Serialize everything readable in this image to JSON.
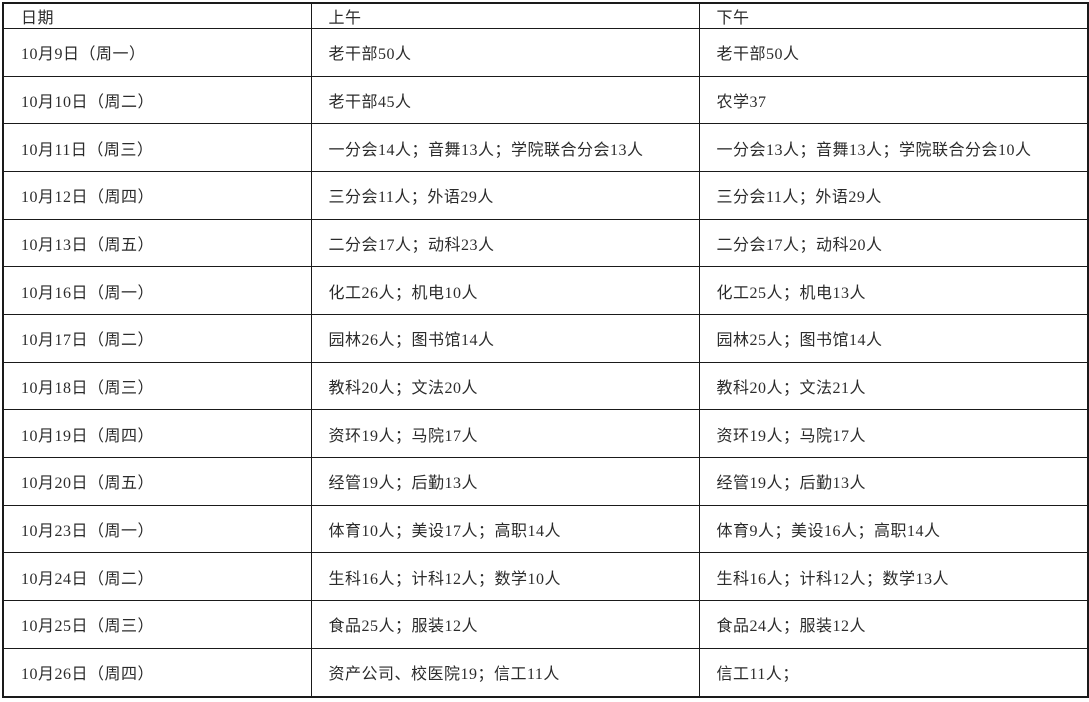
{
  "table": {
    "headers": [
      "日期",
      "上午",
      "下午"
    ],
    "rows": [
      {
        "date": "10月9日（周一）",
        "morning": "老干部50人",
        "afternoon": "老干部50人"
      },
      {
        "date": "10月10日（周二）",
        "morning": "老干部45人",
        "afternoon": "农学37"
      },
      {
        "date": "10月11日（周三）",
        "morning": "一分会14人；音舞13人；学院联合分会13人",
        "afternoon": "一分会13人；音舞13人；学院联合分会10人"
      },
      {
        "date": "10月12日（周四）",
        "morning": "三分会11人；外语29人",
        "afternoon": "三分会11人；外语29人"
      },
      {
        "date": "10月13日（周五）",
        "morning": "二分会17人；动科23人",
        "afternoon": "二分会17人；动科20人"
      },
      {
        "date": "10月16日（周一）",
        "morning": "化工26人；机电10人",
        "afternoon": "化工25人；机电13人"
      },
      {
        "date": "10月17日（周二）",
        "morning": "园林26人；图书馆14人",
        "afternoon": "园林25人；图书馆14人"
      },
      {
        "date": "10月18日（周三）",
        "morning": "教科20人；文法20人",
        "afternoon": "教科20人；文法21人"
      },
      {
        "date": "10月19日（周四）",
        "morning": "资环19人；马院17人",
        "afternoon": "资环19人；马院17人"
      },
      {
        "date": "10月20日（周五）",
        "morning": "经管19人；后勤13人",
        "afternoon": "经管19人；后勤13人"
      },
      {
        "date": "10月23日（周一）",
        "morning": "体育10人；美设17人；高职14人",
        "afternoon": "体育9人；美设16人；高职14人"
      },
      {
        "date": "10月24日（周二）",
        "morning": "生科16人；计科12人；数学10人",
        "afternoon": "生科16人；计科12人；数学13人"
      },
      {
        "date": "10月25日（周三）",
        "morning": "食品25人；服装12人",
        "afternoon": "食品24人；服装12人"
      },
      {
        "date": "10月26日（周四）",
        "morning": "资产公司、校医院19；信工11人",
        "afternoon": "信工11人；"
      }
    ]
  },
  "colors": {
    "border": "#1a1a1a",
    "text": "#2b2b2b",
    "background": "#ffffff"
  }
}
